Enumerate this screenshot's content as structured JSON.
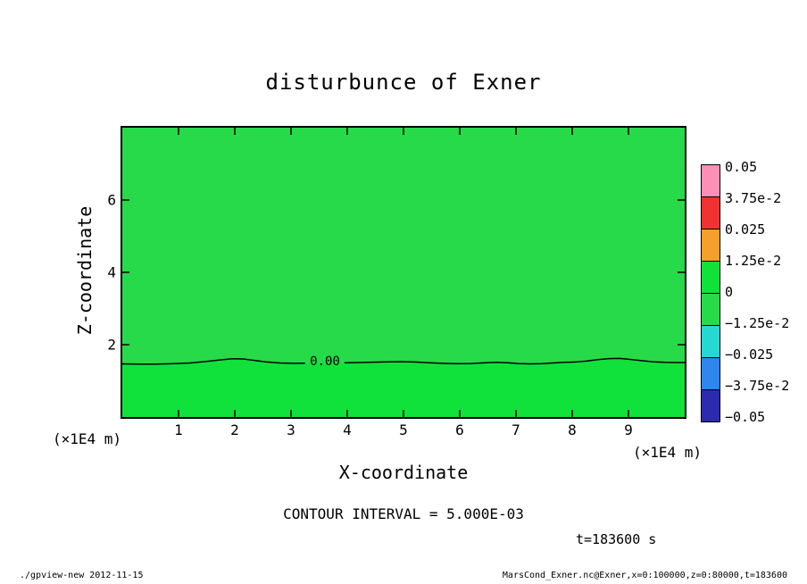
{
  "title": "disturbunce of Exner",
  "axes": {
    "x_label": "X-coordinate",
    "y_label": "Z-coordinate",
    "x_unit": "(×1E4 m)",
    "y_unit": "(×1E4 m)",
    "x_ticks": [
      "1",
      "2",
      "3",
      "4",
      "5",
      "6",
      "7",
      "8",
      "9"
    ],
    "y_ticks": [
      "2",
      "4",
      "6"
    ]
  },
  "annotations": {
    "contour_interval": "CONTOUR INTERVAL = 5.000E-03",
    "time": "t=183600 s"
  },
  "footer": {
    "left": "./gpview-new  2012-11-15",
    "right": "MarsCond_Exner.nc@Exner,x=0:100000,z=0:80000,t=183600"
  },
  "colorbar": {
    "levels": [
      "0.05",
      "3.75e-2",
      "0.025",
      "1.25e-2",
      "0",
      "−1.25e-2",
      "−0.025",
      "−3.75e-2",
      "−0.05"
    ],
    "colors": [
      "#fb8fb5",
      "#f13232",
      "#f4a02c",
      "#11e13b",
      "#27da49",
      "#25d8d2",
      "#2f86ee",
      "#2b2bb0"
    ]
  },
  "chart_data": {
    "type": "heatmap",
    "title": "disturbunce of Exner",
    "xlabel": "X-coordinate",
    "ylabel": "Z-coordinate",
    "x_unit": "×1E4 m",
    "y_unit": "×1E4 m",
    "x_range_m": [
      0,
      100000
    ],
    "z_range_m": [
      0,
      80000
    ],
    "x_ticks": [
      1,
      2,
      3,
      4,
      5,
      6,
      7,
      8,
      9
    ],
    "z_ticks": [
      2,
      4,
      6
    ],
    "contour_interval": 0.005,
    "time_s": 183600,
    "levels": [
      0.05,
      0.0375,
      0.025,
      0.0125,
      0,
      -0.0125,
      -0.025,
      -0.0375,
      -0.05
    ],
    "field_description": "Exner function disturbance; field is near zero everywhere, single 0.00 contour undulating near z=15000 m separating a weakly negative region above from a weakly positive region below",
    "contour_label": "0.00",
    "fill_above_contour": "#27da49",
    "fill_below_contour": "#11e13b",
    "label_gap_x_m": [
      32500,
      39500
    ],
    "zero_contour_points": [
      [
        0,
        14700
      ],
      [
        3000,
        14650
      ],
      [
        6000,
        14650
      ],
      [
        9000,
        14750
      ],
      [
        12000,
        14950
      ],
      [
        15000,
        15350
      ],
      [
        17500,
        15800
      ],
      [
        19500,
        16100
      ],
      [
        21500,
        16050
      ],
      [
        23500,
        15650
      ],
      [
        25500,
        15250
      ],
      [
        28000,
        14950
      ],
      [
        30500,
        14850
      ],
      [
        32500,
        14900
      ],
      [
        35000,
        14950
      ],
      [
        37500,
        15000
      ],
      [
        39500,
        15000
      ],
      [
        42000,
        15050
      ],
      [
        44500,
        15150
      ],
      [
        47000,
        15250
      ],
      [
        49500,
        15300
      ],
      [
        52000,
        15200
      ],
      [
        54500,
        15000
      ],
      [
        57000,
        14850
      ],
      [
        59500,
        14750
      ],
      [
        62000,
        14800
      ],
      [
        64500,
        15000
      ],
      [
        66500,
        15100
      ],
      [
        68500,
        15000
      ],
      [
        70500,
        14800
      ],
      [
        72500,
        14700
      ],
      [
        74500,
        14750
      ],
      [
        76500,
        14950
      ],
      [
        78500,
        15100
      ],
      [
        80500,
        15200
      ],
      [
        82500,
        15450
      ],
      [
        84500,
        15850
      ],
      [
        86500,
        16150
      ],
      [
        88500,
        16200
      ],
      [
        90500,
        15900
      ],
      [
        92500,
        15550
      ],
      [
        94500,
        15250
      ],
      [
        96500,
        15100
      ],
      [
        98500,
        15050
      ],
      [
        100000,
        15050
      ]
    ],
    "legend_position": "right"
  }
}
